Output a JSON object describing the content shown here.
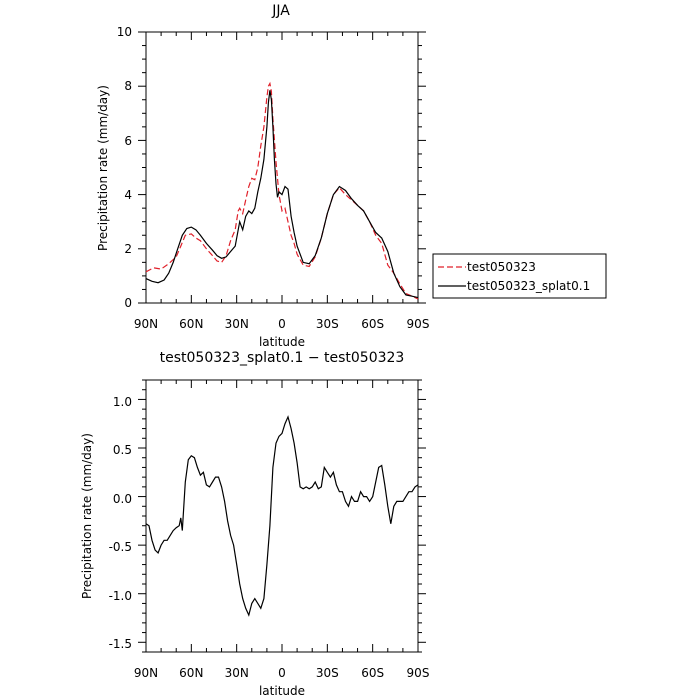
{
  "chart_data": [
    {
      "type": "line",
      "title": "JJA",
      "xlabel": "latitude",
      "ylabel": "Precipitation rate (mm/day)",
      "xlim": [
        90,
        -90
      ],
      "ylim": [
        0,
        10
      ],
      "x_ticks": [
        90,
        60,
        30,
        0,
        -30,
        -60,
        -90
      ],
      "x_tick_labels": [
        "90N",
        "60N",
        "30N",
        "0",
        "30S",
        "60S",
        "90S"
      ],
      "y_ticks": [
        0,
        2,
        4,
        6,
        8,
        10
      ],
      "y_tick_labels": [
        "0",
        "2",
        "4",
        "6",
        "8",
        "10"
      ],
      "legend_position": "right, outside plot",
      "series": [
        {
          "name": "test050323",
          "color": "#e0202a",
          "style": "dashed",
          "x": [
            90,
            85,
            80,
            75,
            70,
            67,
            64,
            60,
            57,
            54,
            50,
            46,
            43,
            40,
            37,
            34,
            31,
            29,
            28,
            26,
            24,
            22,
            20,
            18,
            16,
            14,
            12,
            10,
            9,
            8,
            7,
            6,
            4,
            2,
            0,
            -2,
            -4,
            -6,
            -8,
            -10,
            -14,
            -18,
            -22,
            -26,
            -30,
            -34,
            -38,
            -42,
            -46,
            -50,
            -54,
            -58,
            -62,
            -66,
            -70,
            -74,
            -78,
            -82,
            -86,
            -90
          ],
          "values": [
            1.15,
            1.3,
            1.25,
            1.45,
            1.7,
            2.1,
            2.5,
            2.55,
            2.4,
            2.3,
            2.0,
            1.75,
            1.55,
            1.5,
            1.75,
            2.3,
            2.7,
            3.4,
            3.5,
            3.3,
            3.8,
            4.3,
            4.6,
            4.55,
            5.0,
            5.8,
            6.5,
            7.6,
            8.0,
            8.1,
            7.8,
            6.8,
            5.2,
            4.0,
            3.4,
            3.5,
            3.0,
            2.5,
            2.2,
            1.8,
            1.4,
            1.35,
            1.7,
            2.4,
            3.3,
            4.0,
            4.25,
            4.0,
            3.8,
            3.6,
            3.4,
            3.0,
            2.5,
            2.2,
            1.4,
            1.1,
            0.7,
            0.35,
            0.25,
            0.15
          ]
        },
        {
          "name": "test050323_splat0.1",
          "color": "#000000",
          "style": "solid",
          "x": [
            90,
            86,
            82,
            78,
            75,
            72,
            69,
            66,
            63,
            60,
            57,
            54,
            50,
            46,
            43,
            40,
            37,
            34,
            31,
            29,
            28,
            26,
            24,
            22,
            20,
            18,
            16,
            14,
            12,
            10,
            9,
            8,
            7,
            6,
            5,
            4,
            3,
            2,
            0,
            -2,
            -4,
            -6,
            -8,
            -10,
            -14,
            -18,
            -22,
            -26,
            -30,
            -34,
            -38,
            -42,
            -46,
            -50,
            -54,
            -58,
            -62,
            -66,
            -70,
            -74,
            -78,
            -82,
            -86,
            -90
          ],
          "values": [
            0.9,
            0.8,
            0.75,
            0.85,
            1.1,
            1.5,
            2.0,
            2.5,
            2.75,
            2.8,
            2.7,
            2.5,
            2.2,
            1.95,
            1.75,
            1.65,
            1.7,
            1.9,
            2.1,
            2.7,
            3.0,
            2.7,
            3.2,
            3.4,
            3.3,
            3.5,
            4.1,
            4.6,
            5.3,
            6.5,
            7.4,
            7.85,
            7.5,
            6.5,
            5.3,
            4.4,
            3.9,
            4.1,
            4.0,
            4.3,
            4.2,
            3.2,
            2.6,
            2.1,
            1.5,
            1.45,
            1.75,
            2.4,
            3.3,
            4.0,
            4.3,
            4.15,
            3.85,
            3.6,
            3.4,
            3.0,
            2.6,
            2.4,
            1.9,
            1.1,
            0.6,
            0.3,
            0.25,
            0.2
          ]
        }
      ]
    },
    {
      "type": "line",
      "title": "test050323_splat0.1 − test050323",
      "xlabel": "latitude",
      "ylabel": "Precipitation rate (mm/day)",
      "xlim": [
        90,
        -90
      ],
      "ylim": [
        -1.6,
        1.2
      ],
      "x_ticks": [
        90,
        60,
        30,
        0,
        -30,
        -60,
        -90
      ],
      "x_tick_labels": [
        "90N",
        "60N",
        "30N",
        "0",
        "30S",
        "60S",
        "90S"
      ],
      "y_ticks": [
        1.0,
        0.5,
        0.0,
        -0.5,
        -1.0,
        -1.5
      ],
      "y_tick_labels": [
        "1.0",
        "0.5",
        "0.0",
        "-0.5",
        "-1.0",
        "-1.5"
      ],
      "series": [
        {
          "color": "#000000",
          "style": "solid",
          "x": [
            90,
            88,
            86,
            84,
            82,
            80,
            78,
            76,
            74,
            72,
            70,
            68,
            67,
            66,
            64,
            62,
            60,
            58,
            56,
            54,
            52,
            50,
            48,
            46,
            44,
            42,
            40,
            38,
            36,
            34,
            32,
            30,
            28,
            26,
            24,
            22,
            20,
            18,
            16,
            14,
            12,
            10,
            8,
            6,
            4,
            2,
            0,
            -2,
            -4,
            -6,
            -8,
            -10,
            -12,
            -14,
            -16,
            -18,
            -20,
            -22,
            -24,
            -26,
            -28,
            -30,
            -32,
            -34,
            -36,
            -38,
            -40,
            -42,
            -44,
            -46,
            -48,
            -50,
            -52,
            -54,
            -56,
            -58,
            -60,
            -62,
            -64,
            -66,
            -68,
            -70,
            -72,
            -74,
            -76,
            -78,
            -80,
            -82,
            -84,
            -86,
            -88,
            -90
          ],
          "values": [
            -0.28,
            -0.3,
            -0.45,
            -0.55,
            -0.58,
            -0.5,
            -0.45,
            -0.45,
            -0.4,
            -0.35,
            -0.32,
            -0.3,
            -0.22,
            -0.35,
            0.15,
            0.38,
            0.42,
            0.4,
            0.3,
            0.22,
            0.25,
            0.12,
            0.1,
            0.15,
            0.2,
            0.2,
            0.1,
            -0.05,
            -0.25,
            -0.4,
            -0.5,
            -0.7,
            -0.9,
            -1.05,
            -1.15,
            -1.22,
            -1.1,
            -1.05,
            -1.1,
            -1.15,
            -1.05,
            -0.7,
            -0.3,
            0.3,
            0.55,
            0.62,
            0.65,
            0.75,
            0.82,
            0.7,
            0.55,
            0.35,
            0.1,
            0.08,
            0.1,
            0.08,
            0.1,
            0.15,
            0.08,
            0.1,
            0.3,
            0.25,
            0.2,
            0.25,
            0.12,
            0.05,
            0.05,
            -0.05,
            -0.1,
            0.0,
            -0.05,
            -0.05,
            0.05,
            0.0,
            0.0,
            -0.05,
            0.0,
            0.15,
            0.3,
            0.32,
            0.12,
            -0.1,
            -0.28,
            -0.1,
            -0.05,
            -0.05,
            -0.05,
            0.0,
            0.05,
            0.05,
            0.1,
            0.12
          ]
        }
      ]
    }
  ]
}
